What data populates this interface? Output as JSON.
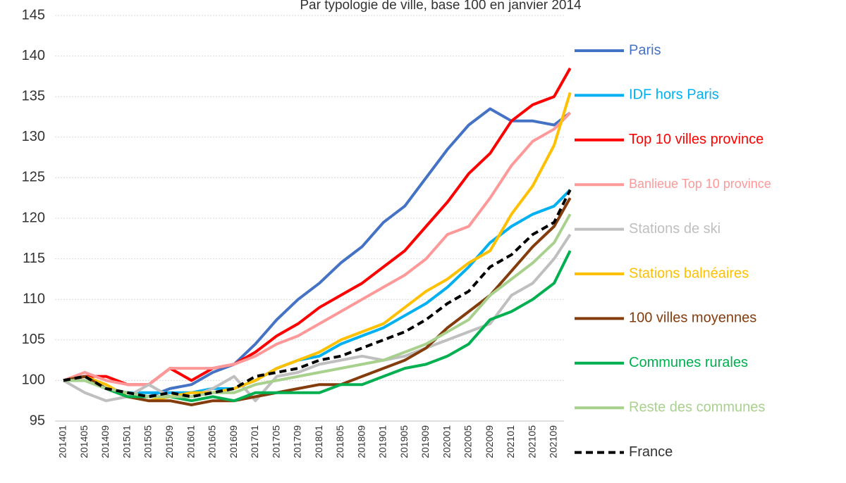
{
  "chart_data": {
    "type": "line",
    "subtitle": "Par typologie de ville, base 100 en janvier 2014",
    "categories": [
      "201401",
      "201405",
      "201409",
      "201501",
      "201505",
      "201509",
      "201601",
      "201605",
      "201609",
      "201701",
      "201705",
      "201709",
      "201801",
      "201805",
      "201809",
      "201901",
      "201905",
      "201909",
      "202001",
      "202005",
      "202009",
      "202101",
      "202105",
      "202109",
      null
    ],
    "ylim": [
      95,
      145
    ],
    "yticks": [
      95,
      100,
      105,
      110,
      115,
      120,
      125,
      130,
      135,
      140,
      145
    ],
    "grid": true,
    "legend": "right",
    "series": [
      {
        "name": "Paris",
        "color": "#4472c4",
        "values": [
          100,
          100.5,
          99,
          98.5,
          98,
          99,
          99.5,
          101,
          102,
          104.5,
          107.5,
          110,
          112,
          114.5,
          116.5,
          119.5,
          121.5,
          125,
          128.5,
          131.5,
          133.5,
          132,
          132,
          131.5,
          133
        ]
      },
      {
        "name": "IDF hors Paris",
        "color": "#00b0f0",
        "values": [
          100,
          100.5,
          99,
          98.5,
          98.5,
          98.5,
          98.5,
          99,
          99,
          100,
          101.5,
          102.5,
          103,
          104.5,
          105.5,
          106.5,
          108,
          109.5,
          111.5,
          114,
          117,
          119,
          120.5,
          121.5,
          123.5
        ]
      },
      {
        "name": "Top 10 villes province",
        "color": "#ff0000",
        "values": [
          100,
          100.5,
          100.5,
          99.5,
          99.5,
          101.5,
          100,
          101.5,
          102,
          103.5,
          105.5,
          107,
          109,
          110.5,
          112,
          114,
          116,
          119,
          122,
          125.5,
          128,
          132,
          134,
          135,
          138.5
        ]
      },
      {
        "name": "Banlieue Top 10 province",
        "color": "#ff9999",
        "values": [
          100,
          101,
          100,
          99.5,
          99.5,
          101.5,
          101.5,
          101.5,
          102,
          103,
          104.5,
          105.5,
          107,
          108.5,
          110,
          111.5,
          113,
          115,
          118,
          119,
          122.5,
          126.5,
          129.5,
          131,
          133
        ]
      },
      {
        "name": "Stations de ski",
        "color": "#bfbfbf",
        "values": [
          100,
          98.5,
          97.5,
          98,
          99.5,
          98,
          98,
          99,
          100.5,
          97.5,
          100.5,
          101,
          102,
          102.5,
          103,
          102.5,
          103,
          104,
          105,
          106,
          107,
          110.5,
          112,
          115,
          118
        ]
      },
      {
        "name": "Stations balnéaires",
        "color": "#ffc000",
        "values": [
          100,
          100.5,
          99.5,
          98,
          97.5,
          98,
          98.5,
          98.5,
          99,
          100,
          101.5,
          102.5,
          103.5,
          105,
          106,
          107,
          109,
          111,
          112.5,
          114.5,
          116,
          120.5,
          124,
          129,
          135.5
        ]
      },
      {
        "name": "100 villes moyennes",
        "color": "#843c0c",
        "values": [
          100,
          100.5,
          99,
          98,
          97.5,
          97.5,
          97,
          97.5,
          97.5,
          98,
          98.5,
          99,
          99.5,
          99.5,
          100.5,
          101.5,
          102.5,
          104,
          106.5,
          108.5,
          110.5,
          113.5,
          116.5,
          119,
          122.5
        ]
      },
      {
        "name": "Communes rurales",
        "color": "#00b050",
        "values": [
          100,
          100,
          99,
          98,
          98,
          98,
          97.5,
          98,
          97.5,
          98.5,
          98.5,
          98.5,
          98.5,
          99.5,
          99.5,
          100.5,
          101.5,
          102,
          103,
          104.5,
          107.5,
          108.5,
          110,
          112,
          116
        ]
      },
      {
        "name": "Reste des communes",
        "color": "#a9d18e",
        "values": [
          100,
          100,
          99,
          98.5,
          98,
          98,
          98,
          98.5,
          98.5,
          99.5,
          100,
          100.5,
          101,
          101.5,
          102,
          102.5,
          103.5,
          104.5,
          106,
          107.5,
          110.5,
          112.5,
          114.5,
          117,
          120.5
        ]
      },
      {
        "name": "France",
        "color": "#000000",
        "style": "dashed",
        "values": [
          100,
          100.5,
          99,
          98.5,
          98,
          98.5,
          98,
          98.5,
          99,
          100.5,
          101,
          101.5,
          102.5,
          103,
          104,
          105,
          106,
          107.5,
          109.5,
          111,
          114,
          115.5,
          118,
          119.5,
          123.5
        ]
      }
    ]
  }
}
